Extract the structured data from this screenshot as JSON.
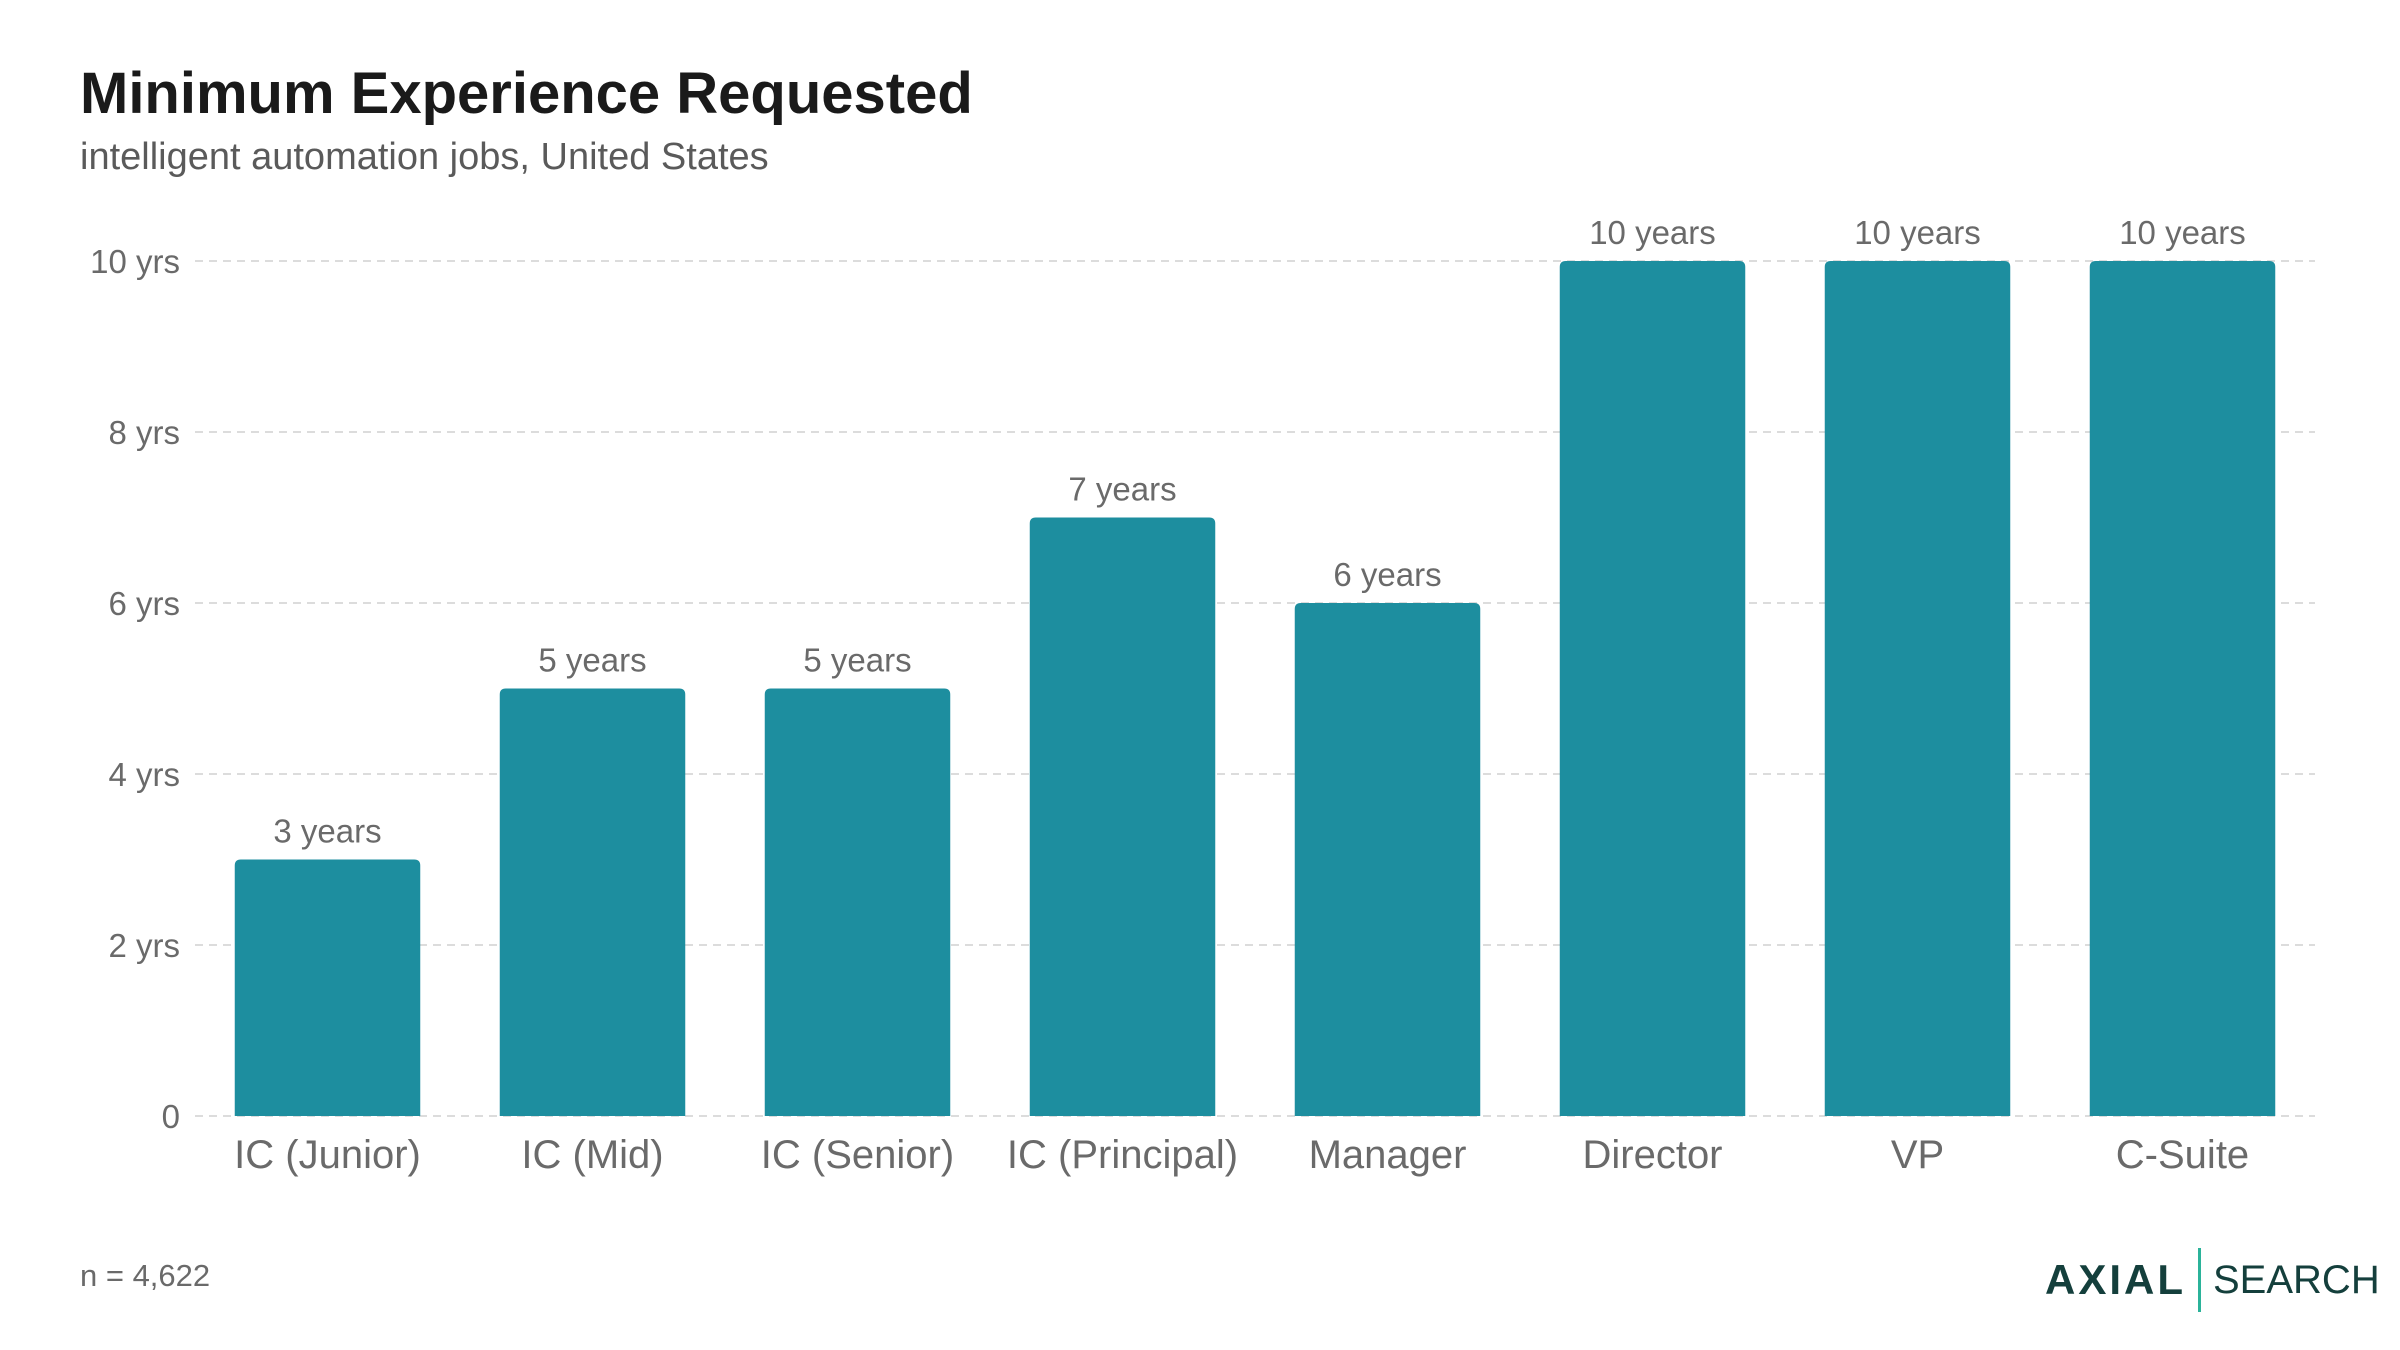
{
  "header": {
    "title": "Minimum Experience Requested",
    "subtitle": "intelligent automation jobs, United States"
  },
  "footer": {
    "note": "n = 4,622",
    "logo_primary": "AXIAL",
    "logo_secondary": "SEARCH"
  },
  "colors": {
    "bar": "#1d8e9f",
    "grid": "#dcdcdc",
    "logo_accent": "#2bb39a"
  },
  "chart_data": {
    "type": "bar",
    "title": "Minimum Experience Requested",
    "subtitle": "intelligent automation jobs, United States",
    "categories": [
      "IC (Junior)",
      "IC (Mid)",
      "IC (Senior)",
      "IC (Principal)",
      "Manager",
      "Director",
      "VP",
      "C-Suite"
    ],
    "values": [
      3,
      5,
      5,
      7,
      6,
      10,
      10,
      10
    ],
    "data_labels": [
      "3 years",
      "5 years",
      "5 years",
      "7 years",
      "6 years",
      "10 years",
      "10 years",
      "10 years"
    ],
    "ylim": [
      0,
      10
    ],
    "yticks": [
      0,
      2,
      4,
      6,
      8,
      10
    ],
    "ytick_labels": [
      "0",
      "2 yrs",
      "4 yrs",
      "6 yrs",
      "8 yrs",
      "10 yrs"
    ],
    "grid": true,
    "legend": "none"
  }
}
